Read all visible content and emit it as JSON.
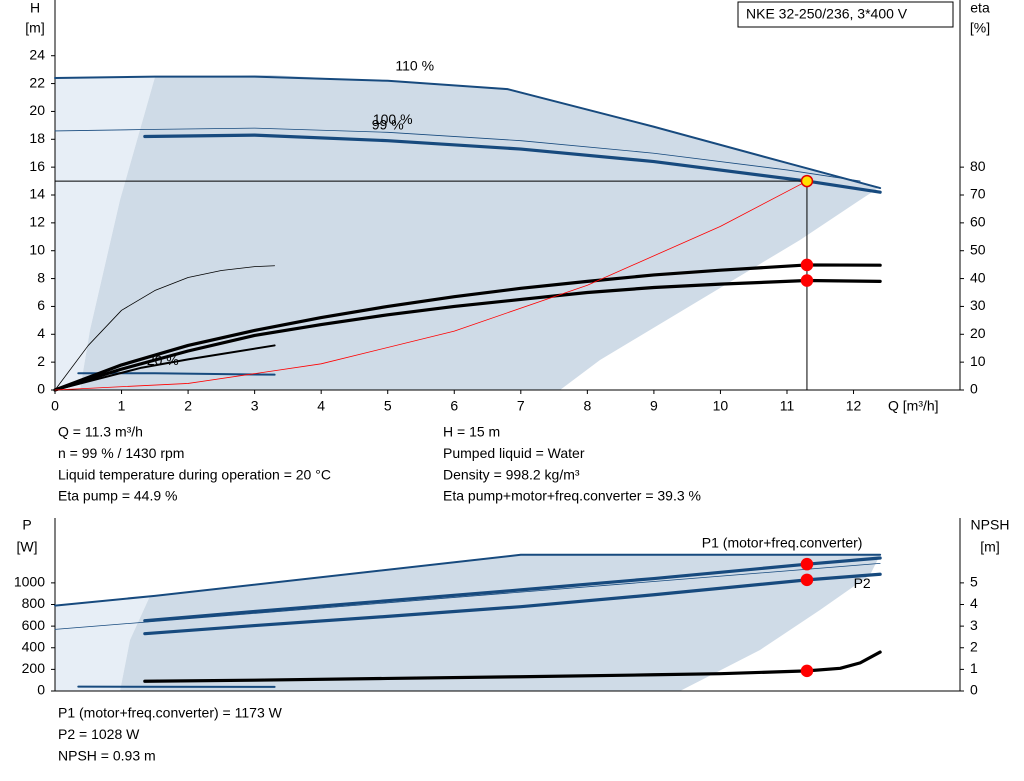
{
  "chart_data": [
    {
      "type": "line",
      "title": "NKE 32-250/236, 3*400 V",
      "xlabel": "Q [m³/h]",
      "ylabel": "H",
      "ylabel_unit": "[m]",
      "y2label": "eta",
      "y2label_unit": "[%]",
      "xlim": [
        0,
        13.6
      ],
      "xticks": [
        0,
        1,
        2,
        3,
        4,
        5,
        6,
        7,
        8,
        9,
        10,
        11,
        12
      ],
      "ylim": [
        0,
        28
      ],
      "yticks": [
        0,
        2,
        4,
        6,
        8,
        10,
        12,
        14,
        16,
        18,
        20,
        22,
        24
      ],
      "y2lim": [
        0,
        140
      ],
      "y2ticks": [
        0,
        10,
        20,
        30,
        40,
        50,
        60,
        70,
        80
      ],
      "grid": false,
      "series": [
        {
          "name": "110 %",
          "color": "#174a7e",
          "style": "normal",
          "x": [
            0,
            1.5,
            3,
            5,
            6.8,
            9,
            11,
            12.4
          ],
          "values": [
            22.4,
            22.5,
            22.5,
            22.2,
            21.6,
            18.9,
            16.3,
            14.5
          ]
        },
        {
          "name": "100 %",
          "color": "#174a7e",
          "style": "thin",
          "x": [
            0,
            1.35,
            3,
            5,
            7,
            9,
            11,
            12.1
          ],
          "values": [
            18.6,
            18.7,
            18.8,
            18.5,
            17.9,
            17.0,
            15.8,
            15.0
          ]
        },
        {
          "name": "99 %",
          "color": "#174a7e",
          "style": "thick",
          "x": [
            1.35,
            3,
            5,
            7,
            9,
            11.3,
            12.4
          ],
          "values": [
            18.2,
            18.3,
            17.9,
            17.3,
            16.4,
            15.0,
            14.2
          ]
        },
        {
          "name": "20 %",
          "color": "#174a7e",
          "style": "normal",
          "x": [
            0.35,
            1.5,
            3.3
          ],
          "values": [
            1.2,
            1.2,
            1.1
          ]
        },
        {
          "color": "#000000",
          "style": "thick",
          "axis": "y2",
          "x": [
            0,
            1,
            2,
            3,
            4,
            5,
            6,
            7,
            8,
            9,
            10,
            11.3,
            12.4
          ],
          "values": [
            0,
            9,
            16,
            21.4,
            26,
            30,
            33.5,
            36.5,
            39,
            41.3,
            43,
            44.9,
            44.8
          ]
        },
        {
          "color": "#000000",
          "style": "thick",
          "axis": "y2",
          "x": [
            0,
            1,
            2,
            3,
            4,
            5,
            6,
            7,
            8,
            9,
            10,
            11.3,
            12.4
          ],
          "values": [
            0,
            7.5,
            14,
            19.6,
            23.5,
            27,
            30,
            32.5,
            35,
            36.8,
            38,
            39.3,
            39.0
          ]
        },
        {
          "color": "#000000",
          "style": "thin",
          "axis": "y2",
          "x": [
            0,
            0.5,
            1,
            1.5,
            2,
            2.5,
            3,
            3.3
          ],
          "values": [
            0,
            16,
            28.6,
            35.7,
            40.4,
            42.9,
            44.3,
            44.6
          ]
        },
        {
          "color": "#000000",
          "style": "normal",
          "axis": "y2",
          "x": [
            0,
            1.3,
            2,
            3.3
          ],
          "values": [
            0,
            8,
            11,
            16
          ]
        },
        {
          "color": "#ff0000",
          "style": "thin",
          "x": [
            0,
            2,
            4,
            6,
            8,
            10,
            11.3
          ],
          "values": [
            0,
            0.47,
            1.88,
            4.23,
            7.52,
            11.75,
            15
          ]
        }
      ],
      "markers": [
        {
          "x": 11.3,
          "value": 15,
          "color": "#ffe000"
        },
        {
          "x": 11.3,
          "value": 44.9,
          "axis": "y2",
          "color": "#ff0000"
        },
        {
          "x": 11.3,
          "value": 39.3,
          "axis": "y2",
          "color": "#ff0000"
        }
      ],
      "info_left": [
        "Q = 11.3 m³/h",
        "n = 99 % / 1430 rpm",
        "Liquid temperature during operation = 20 °C",
        "Eta pump = 44.9 %"
      ],
      "info_right": [
        "H = 15 m",
        "Pumped liquid = Water",
        "Density = 998.2 kg/m³",
        "Eta pump+motor+freq.converter = 39.3 %"
      ]
    },
    {
      "type": "line",
      "ylabel": "P",
      "ylabel_unit": "[W]",
      "y2label": "NPSH",
      "y2label_unit": "[m]",
      "xlim": [
        0,
        13.6
      ],
      "ylim": [
        0,
        1600
      ],
      "yticks": [
        0,
        200,
        400,
        600,
        800,
        1000
      ],
      "y2lim": [
        0,
        8
      ],
      "y2ticks": [
        0,
        1,
        2,
        3,
        4,
        5
      ],
      "grid": false,
      "series": [
        {
          "name": "P1 (motor+freq.converter)",
          "color": "#174a7e",
          "style": "normal",
          "x": [
            0,
            1.5,
            7,
            12.4
          ],
          "values": [
            790,
            880,
            1260,
            1260
          ]
        },
        {
          "color": "#174a7e",
          "style": "thick",
          "x": [
            1.35,
            3,
            5,
            7,
            9,
            11.3,
            12.4
          ],
          "values": [
            650,
            735,
            835,
            935,
            1040,
            1173,
            1230
          ]
        },
        {
          "name": "P2",
          "color": "#174a7e",
          "style": "thick",
          "x": [
            1.35,
            3,
            5,
            7,
            9,
            11.3,
            12.4
          ],
          "values": [
            530,
            605,
            690,
            780,
            890,
            1028,
            1080
          ]
        },
        {
          "color": "#174a7e",
          "style": "thin",
          "x": [
            0,
            12.4
          ],
          "values": [
            570,
            1180
          ]
        },
        {
          "color": "#000000",
          "style": "thick",
          "axis": "y2",
          "x": [
            1.35,
            3,
            5,
            7,
            9,
            10,
            11.3,
            11.8,
            12.1,
            12.4
          ],
          "values": [
            0.45,
            0.5,
            0.58,
            0.66,
            0.75,
            0.8,
            0.93,
            1.05,
            1.3,
            1.8
          ]
        },
        {
          "color": "#174a7e",
          "style": "normal",
          "x": [
            0.35,
            3.3
          ],
          "values": [
            40,
            38
          ]
        }
      ],
      "markers": [
        {
          "x": 11.3,
          "value": 1173,
          "color": "#ff0000"
        },
        {
          "x": 11.3,
          "value": 1028,
          "color": "#ff0000"
        },
        {
          "x": 11.3,
          "value": 0.93,
          "axis": "y2",
          "color": "#ff0000"
        }
      ],
      "info": [
        "P1 (motor+freq.converter) = 1173 W",
        "P2 = 1028 W",
        "NPSH = 0.93 m"
      ]
    }
  ]
}
